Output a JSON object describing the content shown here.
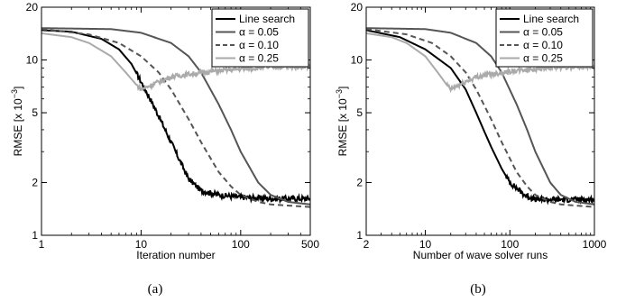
{
  "chart_data": [
    {
      "type": "line",
      "panel_label": "(a)",
      "xlabel": "Iteration number",
      "ylabel_main": "RMSE [x 10",
      "ylabel_exp": "−3",
      "ylabel_close": "]",
      "xscale": "log",
      "yscale": "log",
      "xlim": [
        1,
        500
      ],
      "ylim": [
        1,
        20
      ],
      "xticks": [
        {
          "v": 1,
          "label": "1"
        },
        {
          "v": 10,
          "label": "10"
        },
        {
          "v": 100,
          "label": "100"
        },
        {
          "v": 500,
          "label": "500"
        }
      ],
      "yticks": [
        {
          "v": 1,
          "label": "1"
        },
        {
          "v": 2,
          "label": "2"
        },
        {
          "v": 5,
          "label": "5"
        },
        {
          "v": 10,
          "label": "10"
        },
        {
          "v": 20,
          "label": "20"
        }
      ],
      "grid": false,
      "legend_position": "top-right",
      "series": [
        {
          "name": "Line search",
          "color": "#000000",
          "dash": "",
          "noise": 0.035,
          "x_start": 9,
          "points": [
            [
              1,
              14.8
            ],
            [
              2,
              14.5
            ],
            [
              4,
              13.2
            ],
            [
              6,
              11.5
            ],
            [
              8,
              9.5
            ],
            [
              10,
              7.5
            ],
            [
              12,
              6.2
            ],
            [
              15,
              4.8
            ],
            [
              20,
              3.4
            ],
            [
              25,
              2.6
            ],
            [
              30,
              2.1
            ],
            [
              40,
              1.8
            ],
            [
              60,
              1.7
            ],
            [
              100,
              1.65
            ],
            [
              200,
              1.62
            ],
            [
              500,
              1.62
            ]
          ]
        },
        {
          "name": "α = 0.05",
          "color": "#555555",
          "dash": "",
          "noise": 0,
          "points": [
            [
              1,
              15.2
            ],
            [
              5,
              15.0
            ],
            [
              10,
              14.3
            ],
            [
              20,
              12.5
            ],
            [
              30,
              10.5
            ],
            [
              40,
              8.5
            ],
            [
              60,
              5.6
            ],
            [
              80,
              4.0
            ],
            [
              100,
              3.0
            ],
            [
              150,
              2.0
            ],
            [
              200,
              1.7
            ],
            [
              300,
              1.55
            ],
            [
              500,
              1.5
            ]
          ]
        },
        {
          "name": "α = 0.10",
          "color": "#555555",
          "dash": "6,4",
          "noise": 0,
          "points": [
            [
              1,
              15.0
            ],
            [
              3,
              14.0
            ],
            [
              6,
              12.5
            ],
            [
              10,
              10.5
            ],
            [
              15,
              8.5
            ],
            [
              20,
              6.8
            ],
            [
              30,
              4.6
            ],
            [
              40,
              3.4
            ],
            [
              60,
              2.3
            ],
            [
              80,
              1.9
            ],
            [
              100,
              1.7
            ],
            [
              150,
              1.55
            ],
            [
              200,
              1.5
            ],
            [
              500,
              1.45
            ]
          ]
        },
        {
          "name": "α = 0.25",
          "color": "#aaaaaa",
          "dash": "",
          "noise": 0.03,
          "x_start": 9,
          "points": [
            [
              1,
              14.2
            ],
            [
              2,
              13.5
            ],
            [
              3,
              12.5
            ],
            [
              5,
              10.5
            ],
            [
              7,
              8.5
            ],
            [
              9,
              7.2
            ],
            [
              10,
              6.8
            ],
            [
              12,
              7.1
            ],
            [
              15,
              7.5
            ],
            [
              20,
              8.0
            ],
            [
              30,
              8.3
            ],
            [
              50,
              8.6
            ],
            [
              100,
              8.9
            ],
            [
              200,
              9.1
            ],
            [
              500,
              9.2
            ]
          ]
        }
      ]
    },
    {
      "type": "line",
      "panel_label": "(b)",
      "xlabel": "Number of wave solver runs",
      "ylabel_main": "RMSE [x 10",
      "ylabel_exp": "−3",
      "ylabel_close": "]",
      "xscale": "log",
      "yscale": "log",
      "xlim": [
        2,
        1000
      ],
      "ylim": [
        1,
        20
      ],
      "xticks": [
        {
          "v": 2,
          "label": "2"
        },
        {
          "v": 10,
          "label": "10"
        },
        {
          "v": 100,
          "label": "100"
        },
        {
          "v": 1000,
          "label": "1000"
        }
      ],
      "yticks": [
        {
          "v": 1,
          "label": "1"
        },
        {
          "v": 2,
          "label": "2"
        },
        {
          "v": 5,
          "label": "5"
        },
        {
          "v": 10,
          "label": "10"
        },
        {
          "v": 20,
          "label": "20"
        }
      ],
      "grid": false,
      "legend_position": "top-right",
      "series": [
        {
          "name": "Line search",
          "color": "#000000",
          "dash": "",
          "noise": 0.035,
          "x_start": 90,
          "points": [
            [
              2,
              14.8
            ],
            [
              5,
              13.5
            ],
            [
              10,
              11.5
            ],
            [
              20,
              9.0
            ],
            [
              30,
              6.8
            ],
            [
              40,
              5.0
            ],
            [
              50,
              3.9
            ],
            [
              60,
              3.2
            ],
            [
              80,
              2.4
            ],
            [
              100,
              2.0
            ],
            [
              150,
              1.7
            ],
            [
              200,
              1.6
            ],
            [
              500,
              1.6
            ],
            [
              1000,
              1.6
            ]
          ]
        },
        {
          "name": "α = 0.05",
          "color": "#555555",
          "dash": "",
          "noise": 0,
          "points": [
            [
              2,
              15.2
            ],
            [
              10,
              15.0
            ],
            [
              20,
              14.3
            ],
            [
              40,
              12.5
            ],
            [
              60,
              10.5
            ],
            [
              80,
              8.5
            ],
            [
              120,
              5.6
            ],
            [
              160,
              4.0
            ],
            [
              200,
              3.0
            ],
            [
              300,
              2.0
            ],
            [
              400,
              1.7
            ],
            [
              600,
              1.55
            ],
            [
              1000,
              1.5
            ]
          ]
        },
        {
          "name": "α = 0.10",
          "color": "#555555",
          "dash": "6,4",
          "noise": 0,
          "points": [
            [
              2,
              15.0
            ],
            [
              6,
              14.0
            ],
            [
              12,
              12.5
            ],
            [
              20,
              10.5
            ],
            [
              30,
              8.5
            ],
            [
              40,
              6.8
            ],
            [
              60,
              4.6
            ],
            [
              80,
              3.4
            ],
            [
              120,
              2.3
            ],
            [
              160,
              1.9
            ],
            [
              200,
              1.7
            ],
            [
              300,
              1.55
            ],
            [
              400,
              1.5
            ],
            [
              1000,
              1.45
            ]
          ]
        },
        {
          "name": "α = 0.25",
          "color": "#aaaaaa",
          "dash": "",
          "noise": 0.03,
          "x_start": 18,
          "points": [
            [
              2,
              14.2
            ],
            [
              4,
              13.5
            ],
            [
              6,
              12.5
            ],
            [
              10,
              10.5
            ],
            [
              14,
              8.5
            ],
            [
              18,
              7.2
            ],
            [
              20,
              6.8
            ],
            [
              24,
              7.1
            ],
            [
              30,
              7.5
            ],
            [
              40,
              8.0
            ],
            [
              60,
              8.3
            ],
            [
              100,
              8.6
            ],
            [
              200,
              8.9
            ],
            [
              400,
              9.1
            ],
            [
              1000,
              9.2
            ]
          ]
        }
      ]
    }
  ]
}
